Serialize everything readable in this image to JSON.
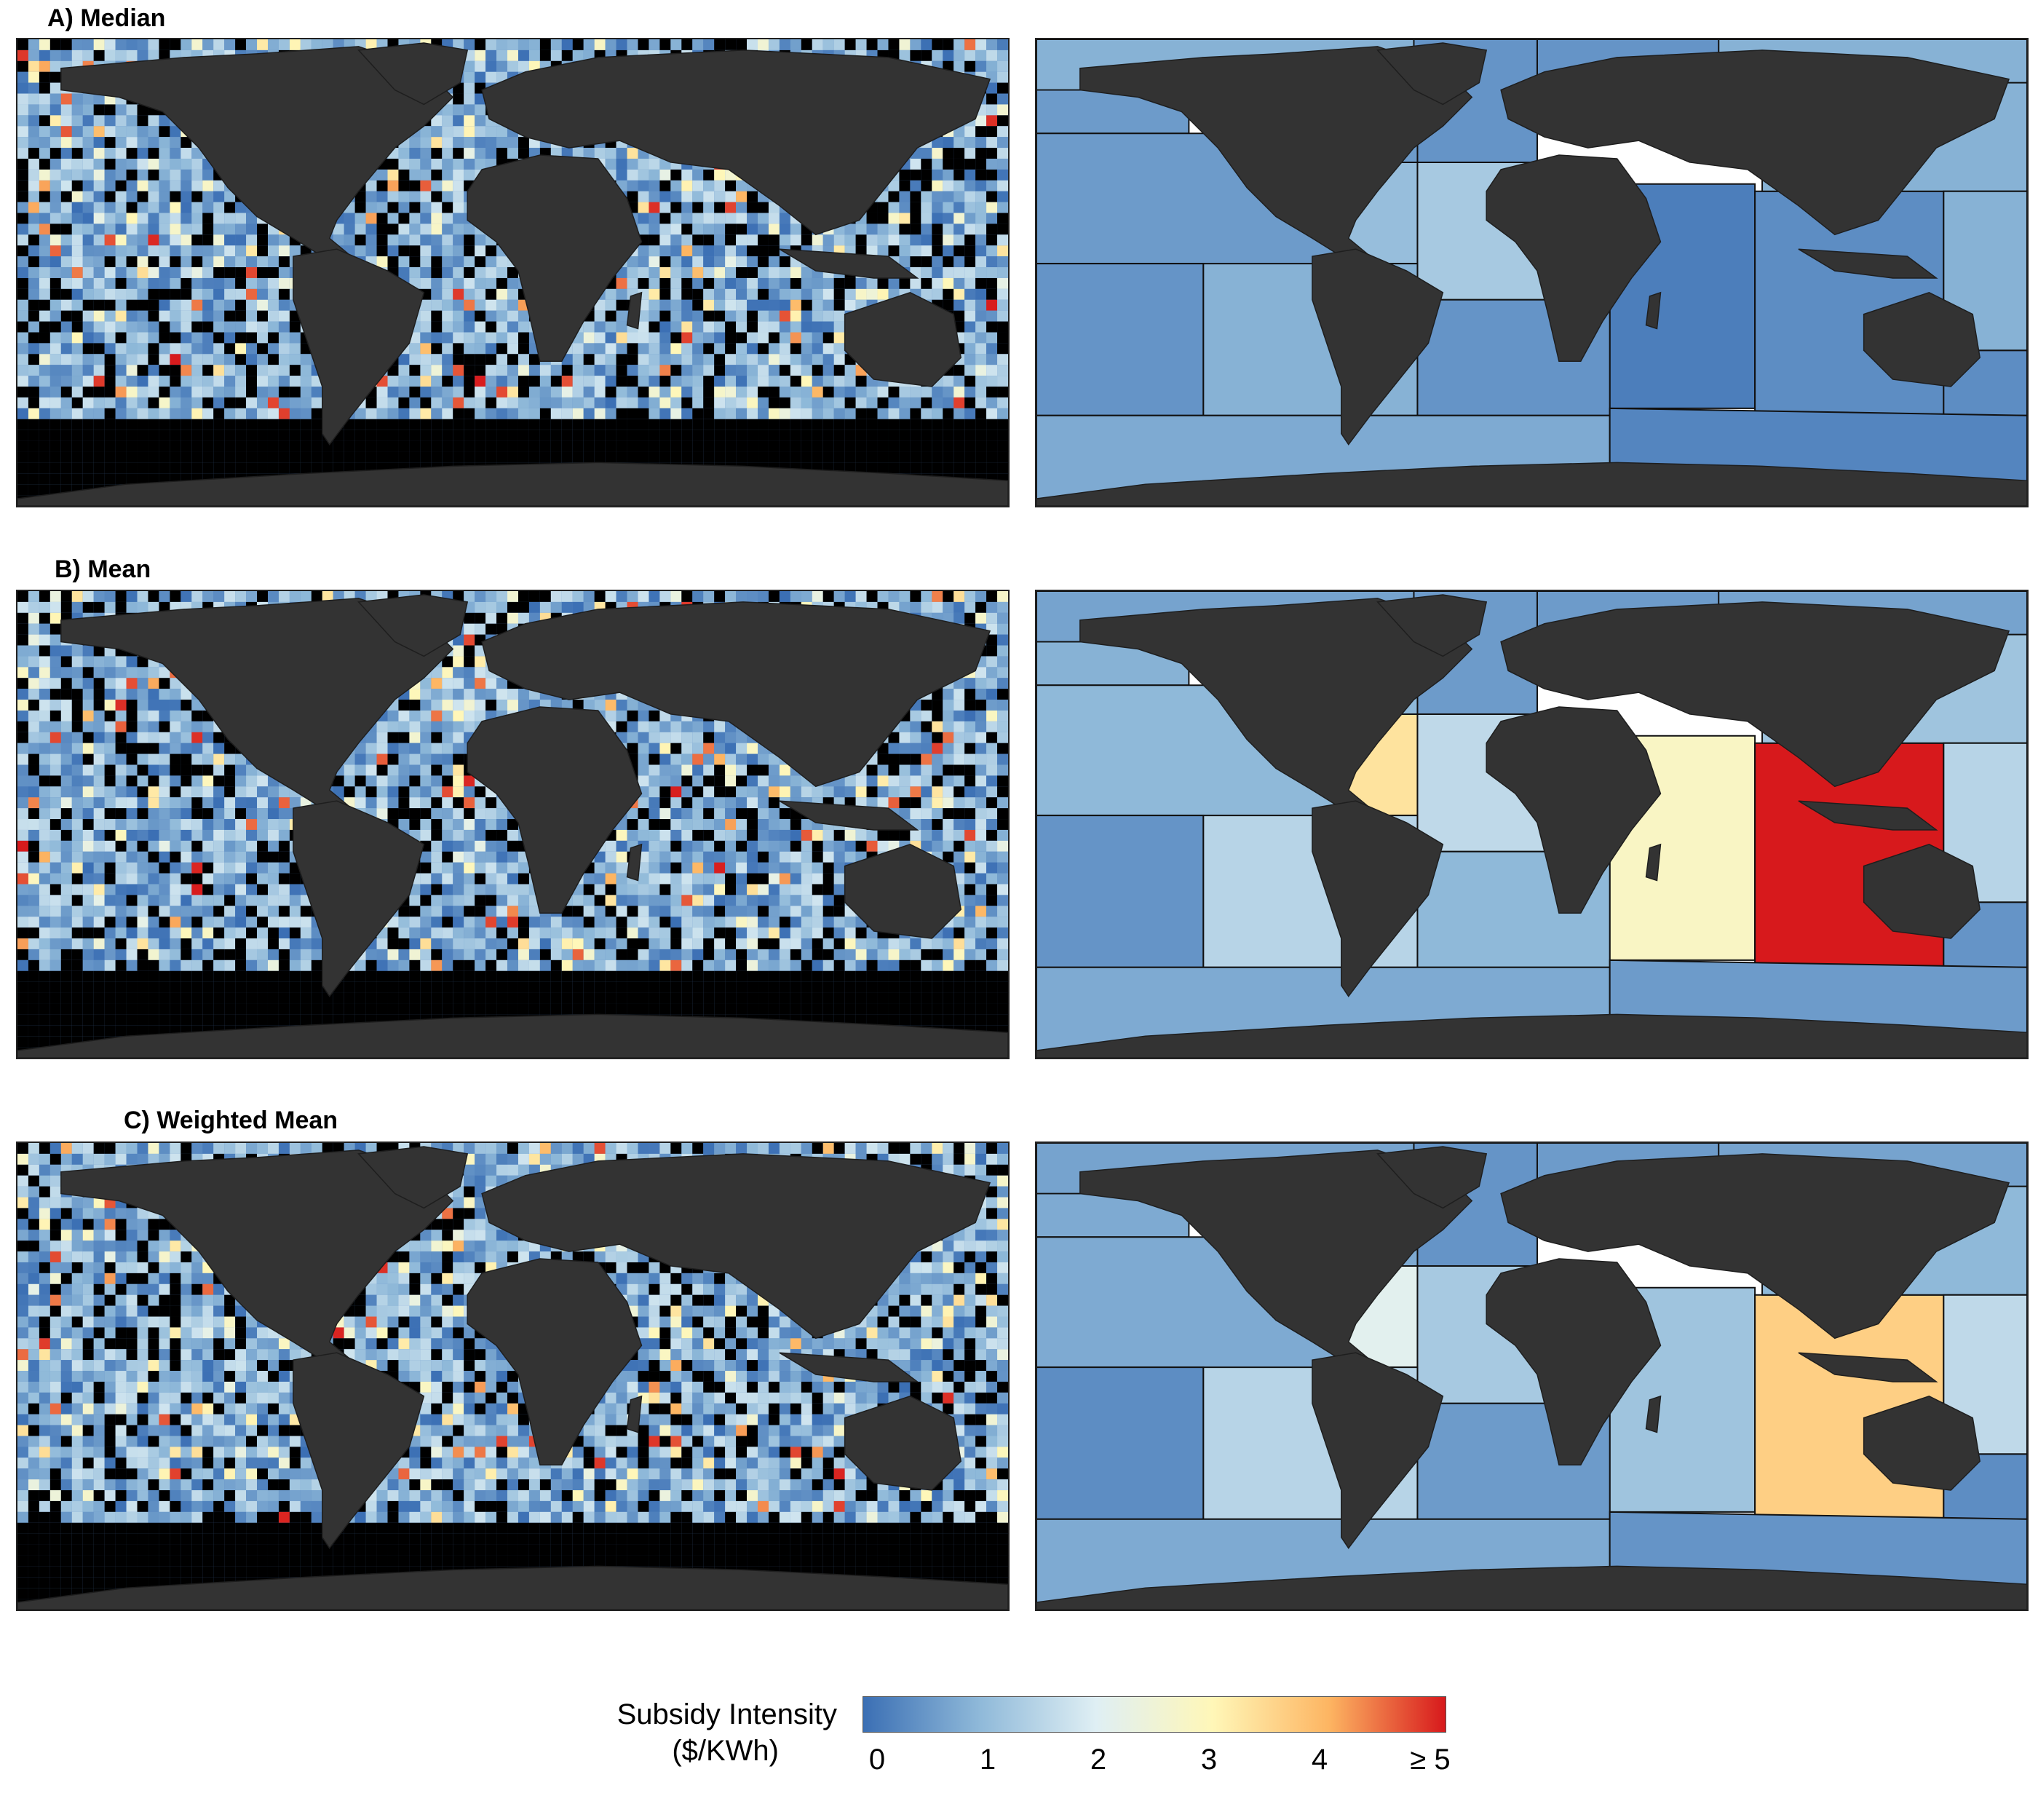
{
  "panels": [
    {
      "label": "A) Median"
    },
    {
      "label": "B) Mean"
    },
    {
      "label": "C) Weighted Mean"
    }
  ],
  "legend": {
    "title_line1": "Subsidy Intensity",
    "title_line2": "($/KWh)",
    "scale_min": 0,
    "scale_max": 5,
    "ticks": [
      "0",
      "1",
      "2",
      "3",
      "4",
      "≥ 5"
    ],
    "colors": [
      "#3b6fb4",
      "#8fb9d9",
      "#dfeff4",
      "#fff7b8",
      "#fdb562",
      "#d7191c"
    ]
  },
  "map_colors": {
    "land": "#333333",
    "no_data": "#000000",
    "region_border": "#111111"
  },
  "region_values": {
    "A": {
      "arctic": 0.9,
      "ne_pacific": 0.6,
      "nw_atlantic": 0.5,
      "ne_atlantic": 0.5,
      "w_indian": 0.2,
      "e_indian": 0.4,
      "nw_pacific": 0.9,
      "e_central_pacific": 0.6,
      "w_central_atlantic": 1.1,
      "e_central_atlantic": 1.3,
      "w_central_pacific": 0.9,
      "se_pacific": 0.5,
      "sw_atlantic": 0.9,
      "se_atlantic": 0.5,
      "sw_pacific": 0.4,
      "southern": 0.8,
      "s_indian": 0.3
    },
    "B": {
      "arctic": 0.7,
      "ne_pacific": 0.9,
      "nw_atlantic": 0.6,
      "ne_atlantic": 0.6,
      "w_indian": 2.8,
      "e_indian": 5.0,
      "nw_pacific": 1.2,
      "e_central_pacific": 1.0,
      "w_central_atlantic": 3.3,
      "e_central_atlantic": 1.6,
      "w_central_pacific": 1.5,
      "se_pacific": 0.5,
      "sw_atlantic": 1.5,
      "se_atlantic": 1.0,
      "sw_pacific": 0.5,
      "southern": 0.8,
      "s_indian": 0.6
    },
    "C": {
      "arctic": 0.7,
      "ne_pacific": 0.8,
      "nw_atlantic": 0.5,
      "ne_atlantic": 0.6,
      "w_indian": 1.2,
      "e_indian": 3.6,
      "nw_pacific": 1.0,
      "e_central_pacific": 0.8,
      "w_central_atlantic": 2.1,
      "e_central_atlantic": 1.3,
      "w_central_pacific": 1.6,
      "se_pacific": 0.4,
      "sw_atlantic": 1.5,
      "se_atlantic": 0.6,
      "sw_pacific": 0.4,
      "southern": 0.8,
      "s_indian": 0.5
    }
  }
}
